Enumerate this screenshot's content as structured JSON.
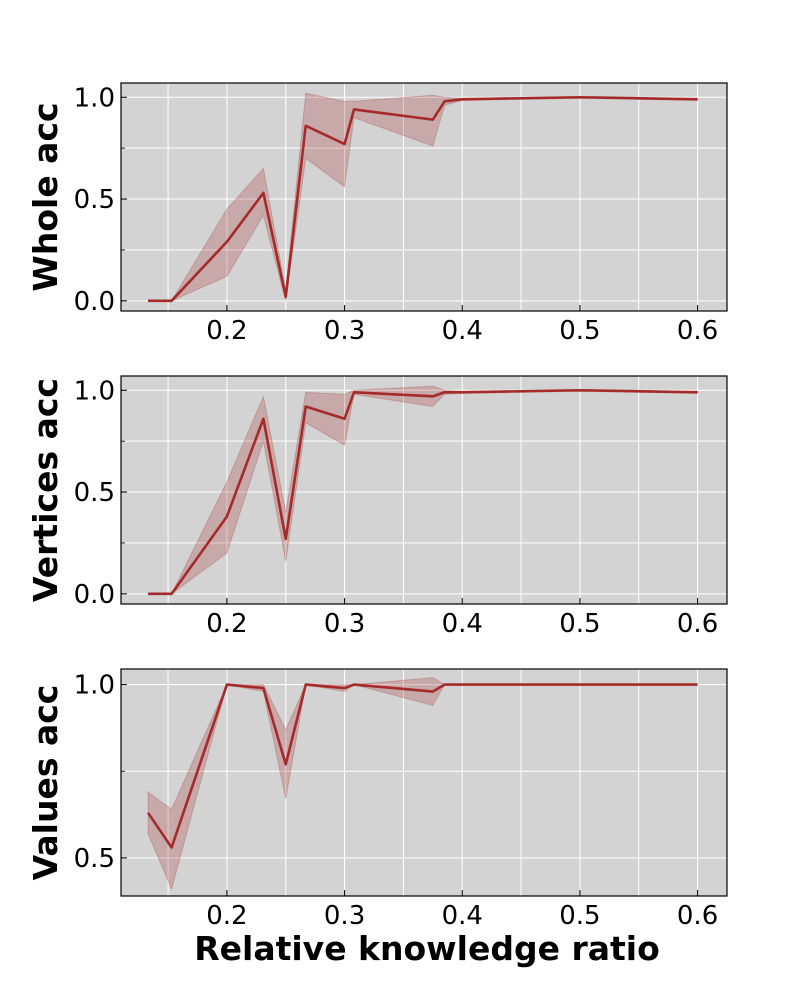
{
  "chart_data": [
    {
      "type": "line",
      "ylabel": "Whole acc",
      "xlabel": "",
      "xlim": [
        0.11,
        0.625
      ],
      "ylim": [
        -0.05,
        1.07
      ],
      "xticks": [
        0.2,
        0.3,
        0.4,
        0.5,
        0.6
      ],
      "xtick_labels": [
        "0.2",
        "0.3",
        "0.4",
        "0.5",
        "0.6"
      ],
      "yticks": [
        0.0,
        0.5,
        1.0
      ],
      "ytick_labels": [
        "0.0",
        "0.5",
        "1.0"
      ],
      "yminor": [
        0.25,
        0.75
      ],
      "grid": true,
      "series_color": "#a52a2a",
      "band_color": "#a52a2a",
      "x": [
        0.133,
        0.153,
        0.2,
        0.231,
        0.25,
        0.267,
        0.3,
        0.308,
        0.375,
        0.385,
        0.4,
        0.5,
        0.6
      ],
      "values": [
        0.0,
        0.0,
        0.29,
        0.53,
        0.02,
        0.86,
        0.77,
        0.94,
        0.89,
        0.98,
        0.99,
        1.0,
        0.99
      ],
      "upper": [
        0.0,
        0.0,
        0.45,
        0.65,
        0.05,
        1.02,
        0.98,
        0.98,
        1.01,
        1.0,
        0.995,
        1.0,
        0.995
      ],
      "lower": [
        0.0,
        0.0,
        0.12,
        0.42,
        0.0,
        0.7,
        0.56,
        0.9,
        0.76,
        0.96,
        0.985,
        0.995,
        0.985
      ]
    },
    {
      "type": "line",
      "ylabel": "Vertices acc",
      "xlabel": "",
      "xlim": [
        0.11,
        0.625
      ],
      "ylim": [
        -0.05,
        1.07
      ],
      "xticks": [
        0.2,
        0.3,
        0.4,
        0.5,
        0.6
      ],
      "xtick_labels": [
        "0.2",
        "0.3",
        "0.4",
        "0.5",
        "0.6"
      ],
      "yticks": [
        0.0,
        0.5,
        1.0
      ],
      "ytick_labels": [
        "0.0",
        "0.5",
        "1.0"
      ],
      "yminor": [
        0.25,
        0.75
      ],
      "grid": true,
      "series_color": "#a52a2a",
      "band_color": "#a52a2a",
      "x": [
        0.133,
        0.153,
        0.2,
        0.231,
        0.25,
        0.267,
        0.3,
        0.308,
        0.375,
        0.385,
        0.4,
        0.5,
        0.6
      ],
      "values": [
        0.0,
        0.0,
        0.38,
        0.86,
        0.27,
        0.92,
        0.86,
        0.99,
        0.97,
        0.99,
        0.99,
        1.0,
        0.99
      ],
      "upper": [
        0.0,
        0.0,
        0.55,
        0.97,
        0.4,
        0.99,
        0.98,
        1.0,
        1.02,
        1.0,
        0.995,
        1.0,
        0.995
      ],
      "lower": [
        0.0,
        0.0,
        0.2,
        0.75,
        0.16,
        0.84,
        0.73,
        0.98,
        0.92,
        0.98,
        0.985,
        0.995,
        0.985
      ]
    },
    {
      "type": "line",
      "ylabel": "Values acc",
      "xlabel": "Relative knowledge ratio",
      "xlim": [
        0.11,
        0.625
      ],
      "ylim": [
        0.39,
        1.045
      ],
      "xticks": [
        0.2,
        0.3,
        0.4,
        0.5,
        0.6
      ],
      "xtick_labels": [
        "0.2",
        "0.3",
        "0.4",
        "0.5",
        "0.6"
      ],
      "yticks": [
        0.5,
        1.0
      ],
      "ytick_labels": [
        "0.5",
        "1.0"
      ],
      "yminor": [
        0.75
      ],
      "grid": true,
      "series_color": "#a52a2a",
      "band_color": "#a52a2a",
      "x": [
        0.133,
        0.153,
        0.2,
        0.231,
        0.25,
        0.267,
        0.3,
        0.308,
        0.375,
        0.385,
        0.4,
        0.5,
        0.6
      ],
      "values": [
        0.63,
        0.53,
        1.0,
        0.99,
        0.77,
        1.0,
        0.99,
        1.0,
        0.98,
        1.0,
        1.0,
        1.0,
        1.0
      ],
      "upper": [
        0.69,
        0.64,
        1.0,
        1.0,
        0.87,
        1.0,
        1.0,
        1.0,
        1.02,
        1.0,
        1.0,
        1.0,
        1.0
      ],
      "lower": [
        0.57,
        0.41,
        1.0,
        0.98,
        0.67,
        1.0,
        0.98,
        1.0,
        0.94,
        1.0,
        1.0,
        1.0,
        1.0
      ]
    }
  ]
}
